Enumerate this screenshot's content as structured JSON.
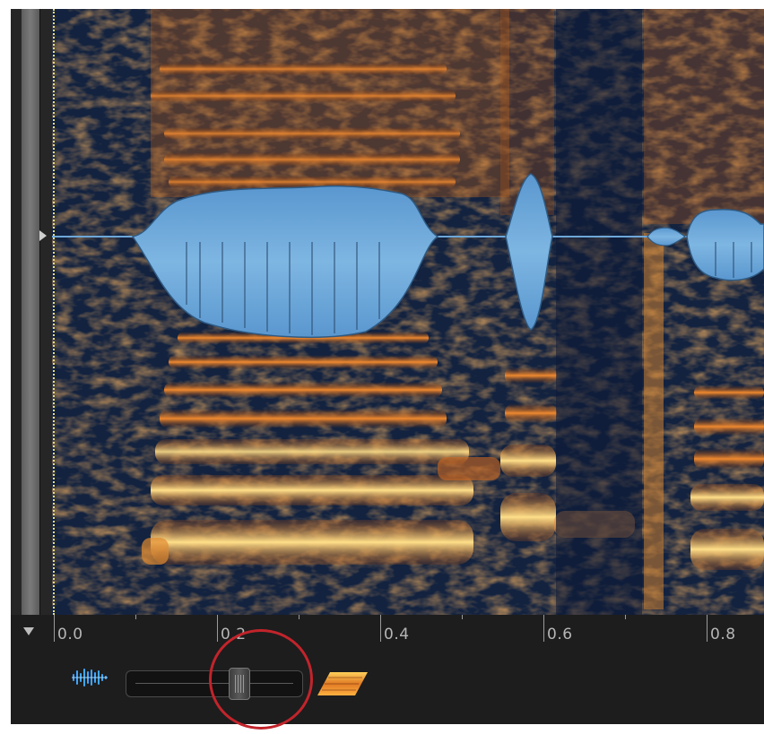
{
  "time_axis": {
    "labels": [
      "0.0",
      "0.2",
      "0.4",
      "0.6",
      "0.8"
    ]
  },
  "toolbar": {
    "waveform_view_icon": "waveform-icon",
    "spectrogram_view_icon": "spectrogram-icon",
    "waveform_spectrogram_blend": 0.66
  },
  "colors": {
    "waveform": "#6ea7d8",
    "spectrogram_hot": "#ffd36a",
    "spectrogram_mid": "#e07a24",
    "spectrogram_background": "#0f1e3a",
    "highlight": "#c2242b"
  }
}
